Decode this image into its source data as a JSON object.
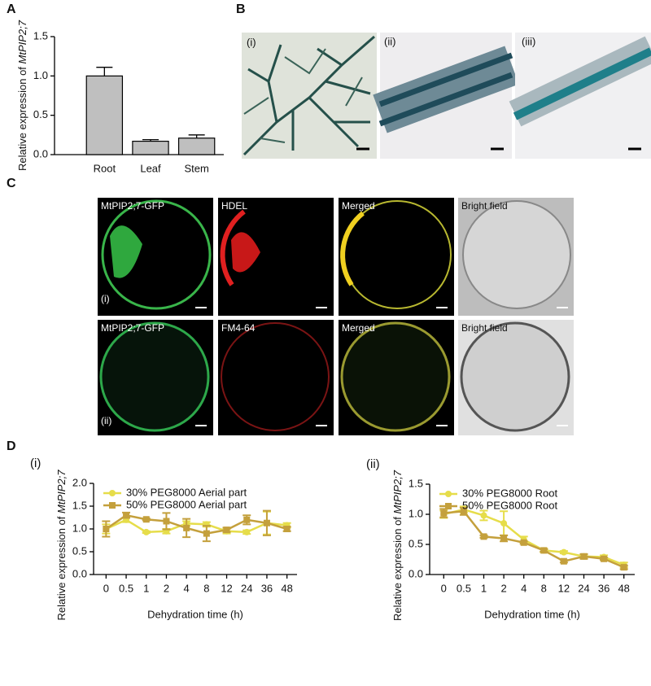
{
  "panel_labels": [
    "A",
    "B",
    "C",
    "D"
  ],
  "figure_b": {
    "labels": [
      "(i)",
      "(ii)",
      "(iii)"
    ]
  },
  "figure_c": {
    "rows": [
      {
        "label": "(i)",
        "channels": [
          "MtPIP2;7-GFP",
          "HDEL",
          "Merged",
          "Bright field"
        ]
      },
      {
        "label": "(ii)",
        "channels": [
          "MtPIP2;7-GFP",
          "FM4-64",
          "Merged",
          "Bright field"
        ]
      }
    ]
  },
  "chart_data": [
    {
      "type": "bar",
      "ylabel": [
        "Relative expression of ",
        "MtPIP2;7"
      ],
      "categories": [
        "Root",
        "Leaf",
        "Stem"
      ],
      "values": [
        1.0,
        0.17,
        0.21
      ],
      "errors": [
        0.11,
        0.02,
        0.04
      ],
      "color": "#bfbfbf",
      "ylim": [
        0,
        1.5
      ],
      "yticks": [
        {
          "value": 0,
          "label": "0.0"
        },
        0.5,
        {
          "value": 1,
          "label": "1.0"
        },
        1.5
      ]
    },
    {
      "type": "line",
      "label": "(i)",
      "ylabel": [
        "Relative expression of ",
        "MtPIP2;7"
      ],
      "xlabel": "Dehydration time (h)",
      "categories": [
        "0",
        "0.5",
        "1",
        "2",
        "4",
        "8",
        "12",
        "24",
        "36",
        "48"
      ],
      "legend": "upper left",
      "ylim": [
        0,
        2
      ],
      "yticks": [
        {
          "value": 0,
          "label": "0.0"
        },
        0.5,
        {
          "value": 1,
          "label": "1.0"
        },
        1.5,
        {
          "value": 2,
          "label": "2.0"
        }
      ],
      "series": [
        {
          "name": "30% PEG8000 Aerial part",
          "color": "#e6dd4a",
          "marker": "circle",
          "values": [
            1.0,
            1.2,
            0.93,
            0.95,
            1.12,
            1.1,
            0.95,
            0.93,
            1.13,
            1.08
          ],
          "errors": [
            0.1,
            0.05,
            0.02,
            0.05,
            0.05,
            0.05,
            0.05,
            0.04,
            0.25,
            0.05
          ]
        },
        {
          "name": "50% PEG8000 Aerial part",
          "color": "#c4a03c",
          "marker": "square",
          "values": [
            1.0,
            1.3,
            1.21,
            1.17,
            1.02,
            0.9,
            0.98,
            1.2,
            1.13,
            1.0
          ],
          "errors": [
            0.17,
            0.06,
            0.02,
            0.18,
            0.2,
            0.17,
            0.05,
            0.1,
            0.27,
            0.05
          ]
        }
      ]
    },
    {
      "type": "line",
      "label": "(ii)",
      "ylabel": [
        "Relative expression of ",
        "MtPIP2;7"
      ],
      "xlabel": "Dehydration time (h)",
      "categories": [
        "0",
        "0.5",
        "1",
        "2",
        "4",
        "8",
        "12",
        "24",
        "36",
        "48"
      ],
      "legend": "upper left",
      "ylim": [
        0,
        1.5
      ],
      "yticks": [
        {
          "value": 0,
          "label": "0.0"
        },
        0.5,
        {
          "value": 1,
          "label": "1.0"
        },
        1.5
      ],
      "series": [
        {
          "name": "30% PEG8000 Root",
          "color": "#e6dd4a",
          "marker": "circle",
          "values": [
            1.0,
            1.08,
            0.98,
            0.85,
            0.58,
            0.4,
            0.37,
            0.3,
            0.29,
            0.16
          ],
          "errors": [
            0.06,
            0.05,
            0.08,
            0.2,
            0.05,
            0.03,
            0.02,
            0.03,
            0.03,
            0.04
          ]
        },
        {
          "name": "50% PEG8000 Root",
          "color": "#c4a03c",
          "marker": "square",
          "values": [
            1.02,
            1.05,
            0.63,
            0.6,
            0.53,
            0.4,
            0.22,
            0.3,
            0.26,
            0.12
          ],
          "errors": [
            0.07,
            0.06,
            0.02,
            0.05,
            0.02,
            0.02,
            0.02,
            0.04,
            0.02,
            0.03
          ]
        }
      ]
    }
  ]
}
